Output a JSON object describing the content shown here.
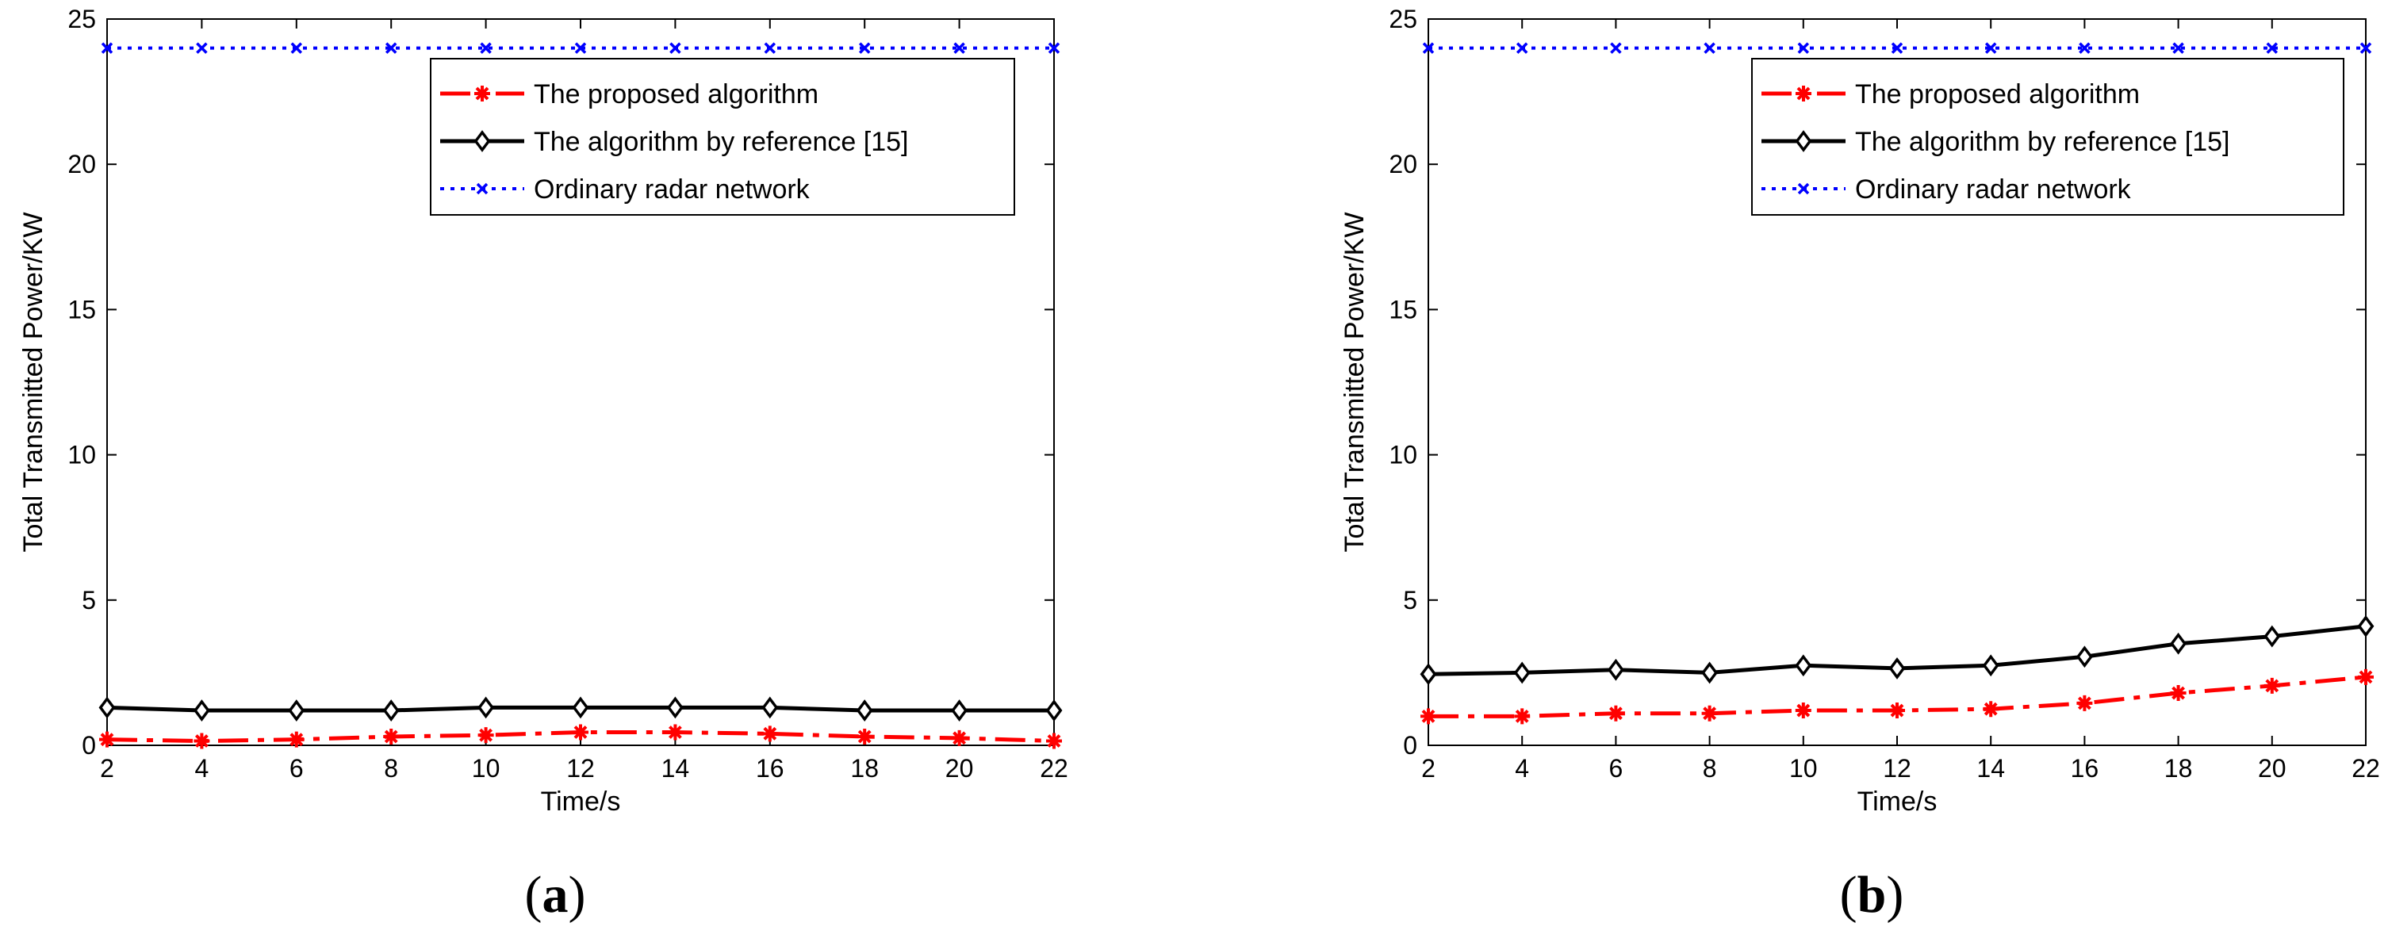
{
  "chart_data": [
    {
      "type": "line",
      "panel_label": "a",
      "xlabel": "Time/s",
      "ylabel": "Total Transmitted Power/KW",
      "xlim": [
        2,
        22
      ],
      "ylim": [
        0,
        25
      ],
      "xticks": [
        2,
        4,
        6,
        8,
        10,
        12,
        14,
        16,
        18,
        20,
        22
      ],
      "yticks": [
        0,
        5,
        10,
        15,
        20,
        25
      ],
      "grid": false,
      "legend_position": "top-right",
      "x": [
        2,
        4,
        6,
        8,
        10,
        12,
        14,
        16,
        18,
        20,
        22
      ],
      "series": [
        {
          "name": "The proposed algorithm",
          "color": "#ff0000",
          "line": "dash-dot",
          "marker": "star",
          "values": [
            0.2,
            0.15,
            0.2,
            0.3,
            0.35,
            0.45,
            0.45,
            0.4,
            0.3,
            0.25,
            0.15
          ]
        },
        {
          "name": "The algorithm by reference [15]",
          "color": "#000000",
          "line": "solid",
          "marker": "diamond",
          "values": [
            1.3,
            1.2,
            1.2,
            1.2,
            1.3,
            1.3,
            1.3,
            1.3,
            1.2,
            1.2,
            1.2
          ]
        },
        {
          "name": "Ordinary radar network",
          "color": "#0000ff",
          "line": "dotted",
          "marker": "x",
          "values": [
            24,
            24,
            24,
            24,
            24,
            24,
            24,
            24,
            24,
            24,
            24
          ]
        }
      ]
    },
    {
      "type": "line",
      "panel_label": "b",
      "xlabel": "Time/s",
      "ylabel": "Total Transmitted Power/KW",
      "xlim": [
        2,
        22
      ],
      "ylim": [
        0,
        25
      ],
      "xticks": [
        2,
        4,
        6,
        8,
        10,
        12,
        14,
        16,
        18,
        20,
        22
      ],
      "yticks": [
        0,
        5,
        10,
        15,
        20,
        25
      ],
      "grid": false,
      "legend_position": "top-right",
      "x": [
        2,
        4,
        6,
        8,
        10,
        12,
        14,
        16,
        18,
        20,
        22
      ],
      "series": [
        {
          "name": "The proposed algorithm",
          "color": "#ff0000",
          "line": "dash-dot",
          "marker": "star",
          "values": [
            1.0,
            1.0,
            1.1,
            1.1,
            1.2,
            1.2,
            1.25,
            1.45,
            1.8,
            2.05,
            2.35
          ]
        },
        {
          "name": "The algorithm by reference [15]",
          "color": "#000000",
          "line": "solid",
          "marker": "diamond",
          "values": [
            2.45,
            2.5,
            2.6,
            2.5,
            2.75,
            2.65,
            2.75,
            3.05,
            3.5,
            3.75,
            4.1
          ]
        },
        {
          "name": "Ordinary radar network",
          "color": "#0000ff",
          "line": "dotted",
          "marker": "x",
          "values": [
            24,
            24,
            24,
            24,
            24,
            24,
            24,
            24,
            24,
            24,
            24
          ]
        }
      ]
    }
  ]
}
